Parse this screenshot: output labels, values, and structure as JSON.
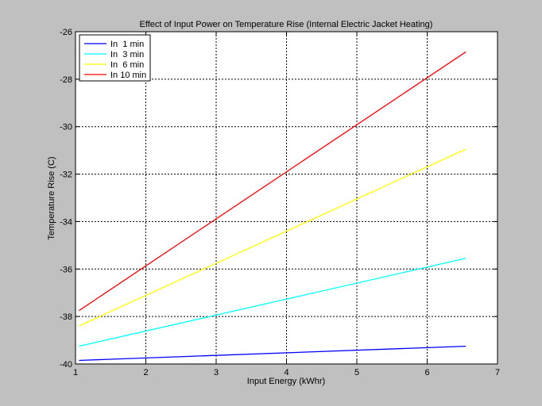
{
  "chart_data": {
    "type": "line",
    "title": "Effect of Input Power on Temperature Rise (Internal Electric Jacket Heating)",
    "xlabel": "Input Energy (kWhr)",
    "ylabel": "Temperature Rise (C)",
    "xlim": [
      1,
      7
    ],
    "ylim": [
      -40,
      -26
    ],
    "xticks": [
      "1",
      "2",
      "3",
      "4",
      "5",
      "6",
      "7"
    ],
    "yticks": [
      "-40",
      "-38",
      "-36",
      "-34",
      "-32",
      "-30",
      "-28",
      "-26"
    ],
    "grid": true,
    "legend_position": "top-left",
    "series": [
      {
        "name": "In  1 min",
        "color": "#0000ff",
        "x": [
          1.05,
          6.55
        ],
        "y": [
          -39.85,
          -39.25
        ]
      },
      {
        "name": "In  3 min",
        "color": "#00ffff",
        "x": [
          1.05,
          6.55
        ],
        "y": [
          -39.25,
          -35.55
        ]
      },
      {
        "name": "In  6 min",
        "color": "#ffff00",
        "x": [
          1.05,
          6.55
        ],
        "y": [
          -38.4,
          -30.95
        ]
      },
      {
        "name": "In 10 min",
        "color": "#ff0000",
        "x": [
          1.05,
          6.55
        ],
        "y": [
          -37.75,
          -26.85
        ]
      }
    ]
  }
}
